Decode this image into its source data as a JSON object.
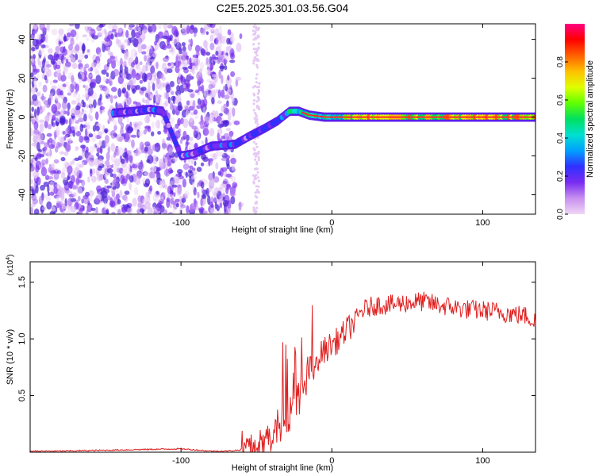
{
  "figure": {
    "title": "C2E5.2025.301.03.56.G04"
  },
  "colors": {
    "snr_line": "#e02020",
    "trace": "#ff2a2a"
  },
  "chart_data": [
    {
      "type": "heatmap",
      "xlabel": "Height of straight line (km)",
      "ylabel": "Frequency (Hz)",
      "xlim": [
        -200,
        135
      ],
      "ylim": [
        -50,
        48
      ],
      "x_ticks": [
        -100,
        0,
        100
      ],
      "x_tick_labels": [
        "-100",
        "0",
        "100"
      ],
      "y_ticks": [
        -40,
        -20,
        0,
        20,
        40
      ],
      "y_tick_labels": [
        "-40",
        "-20",
        "0",
        "20",
        "40"
      ],
      "colorbar": {
        "label": "Normalized spectral amplitude",
        "range": [
          0,
          1
        ],
        "ticks": [
          0.0,
          0.2,
          0.4,
          0.6,
          0.8
        ],
        "tick_labels": [
          "0.0",
          "0.2",
          "0.4",
          "0.6",
          "0.8"
        ],
        "colormap": [
          "#f0d6f5",
          "#c890f0",
          "#7a2cf0",
          "#3030ff",
          "#00a0ff",
          "#00e0d0",
          "#00e060",
          "#60ff00",
          "#e0ff00",
          "#ffc000",
          "#ff6000",
          "#ff0000",
          "#ff0080"
        ]
      },
      "trace_x": [
        -145,
        -130,
        -120,
        -112,
        -100,
        -92,
        -80,
        -64,
        -55,
        -45,
        -36,
        -28,
        -22,
        -15,
        -5,
        5,
        20,
        60,
        100,
        135
      ],
      "trace_y": [
        2,
        3,
        4,
        3,
        -20,
        -19,
        -15,
        -14,
        -10,
        -6,
        -2,
        3,
        3,
        1,
        0,
        0,
        0,
        0,
        0,
        0
      ]
    },
    {
      "type": "line",
      "xlabel": "Height of straight line (km)",
      "ylabel": "SNR (10 * v/v)",
      "y_multiplier": "(x10",
      "y_multiplier_exp": "4",
      "y_multiplier_close": ")",
      "xlim": [
        -200,
        135
      ],
      "ylim": [
        0,
        1.68
      ],
      "x_ticks": [
        -100,
        0,
        100
      ],
      "x_tick_labels": [
        "-100",
        "0",
        "100"
      ],
      "y_ticks": [
        0.5,
        1.0,
        1.5
      ],
      "y_tick_labels": [
        "0.5",
        "1.0",
        "1.5"
      ],
      "series": [
        {
          "x": [
            -200,
            -180,
            -160,
            -140,
            -120,
            -100,
            -90,
            -80,
            -70,
            -60,
            -50,
            -45,
            -40,
            -35,
            -30,
            -25,
            -20,
            -15,
            -10,
            -5,
            0,
            5,
            10,
            15,
            20,
            25,
            30,
            40,
            50,
            60,
            70,
            80,
            90,
            100,
            110,
            120,
            130,
            135
          ],
          "y": [
            0.01,
            0.01,
            0.015,
            0.02,
            0.025,
            0.03,
            0.02,
            0.01,
            0.01,
            0.02,
            0.05,
            0.08,
            0.15,
            0.22,
            0.3,
            0.4,
            0.55,
            0.7,
            0.82,
            0.9,
            0.95,
            1.0,
            1.08,
            1.15,
            1.25,
            1.28,
            1.3,
            1.3,
            1.32,
            1.33,
            1.3,
            1.28,
            1.26,
            1.25,
            1.24,
            1.22,
            1.2,
            1.15
          ]
        }
      ]
    }
  ]
}
